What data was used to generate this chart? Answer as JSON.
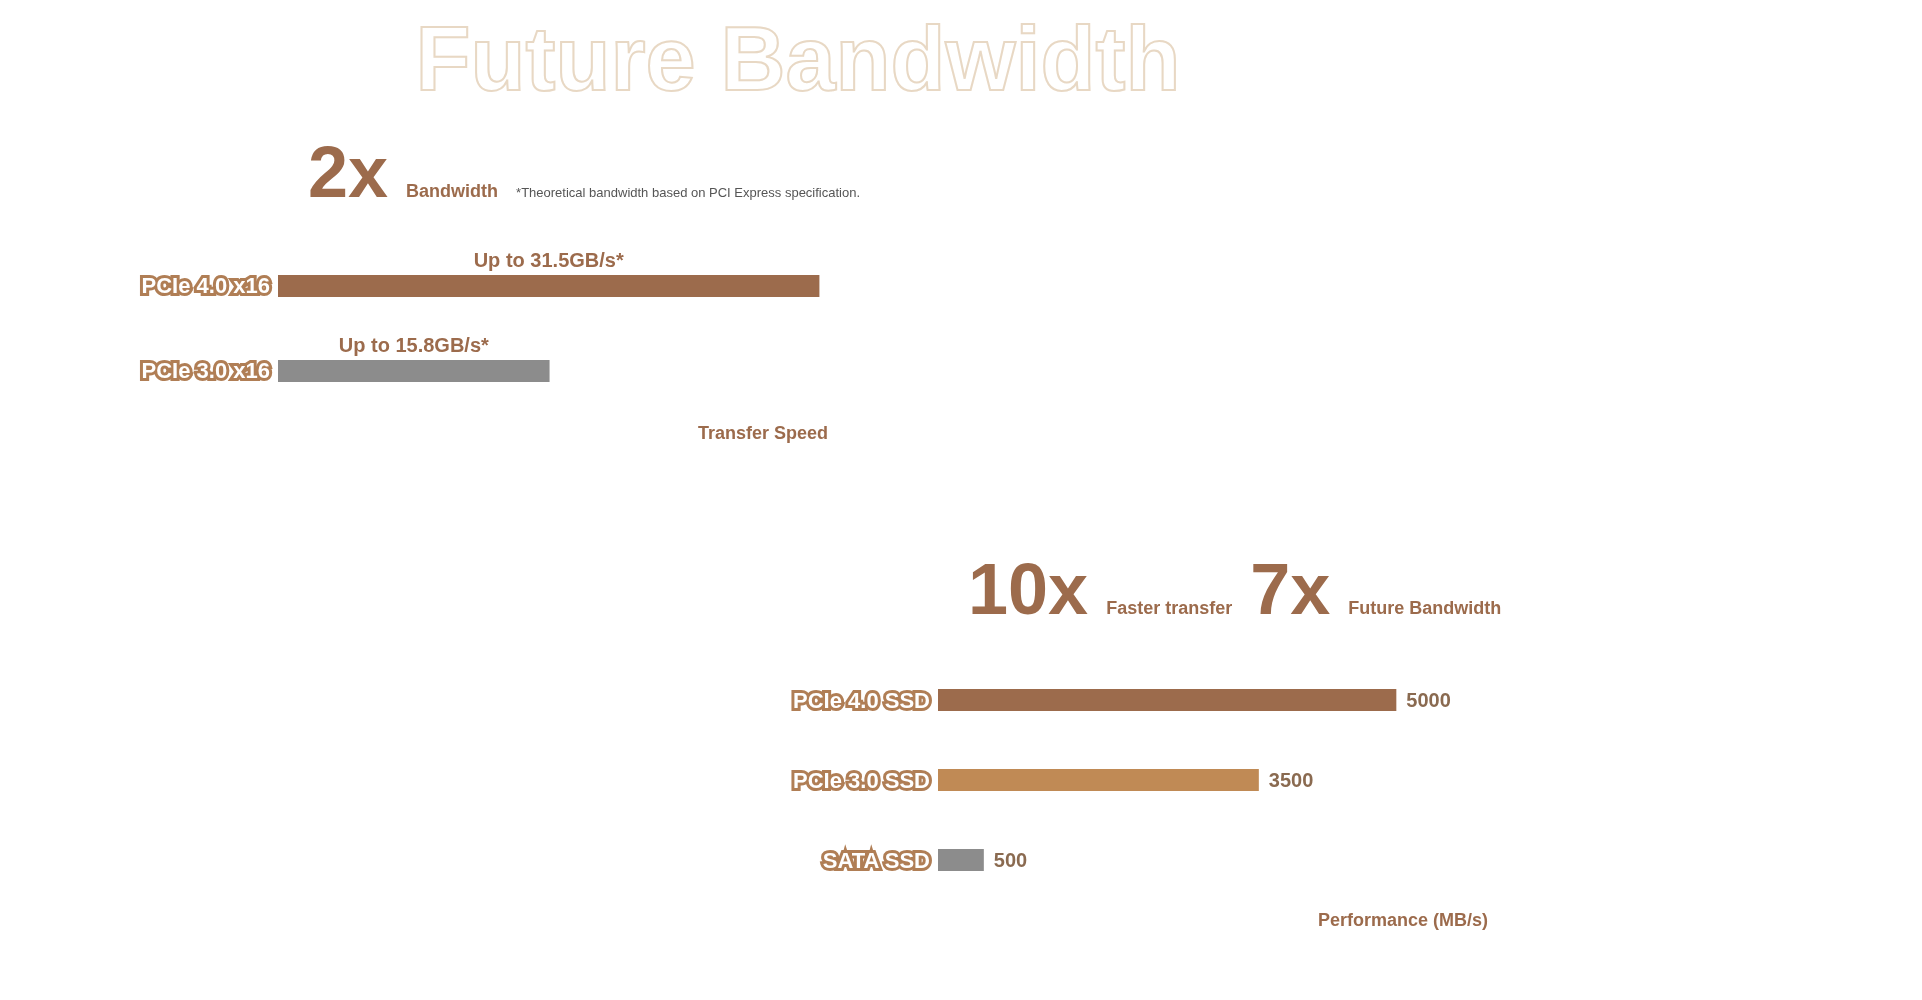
{
  "chart_data": [
    {
      "type": "bar",
      "orientation": "horizontal",
      "title": "Future Bandwidth",
      "categories": [
        "PCIe 4.0 x16",
        "PCIe 3.0 x16"
      ],
      "values": [
        31.5,
        15.8
      ],
      "colors": [
        "#9c6b4c",
        "#8c8c8c"
      ],
      "value_labels": [
        "Up to 31.5GB/s*",
        "Up to 15.8GB/s*"
      ],
      "xlabel": "Transfer Speed",
      "annotations": [
        "2x",
        "Bandwidth",
        "*Theoretical bandwidth based on PCI Express specification."
      ],
      "tick_labels": "y",
      "grid": false,
      "legend": false
    },
    {
      "type": "bar",
      "orientation": "horizontal",
      "categories": [
        "PCIe 4.0 SSD",
        "PCIe 3.0 SSD",
        "SATA SSD"
      ],
      "values": [
        5000,
        3500,
        500
      ],
      "colors": [
        "#9c6b4c",
        "#c08a55",
        "#8c8c8c"
      ],
      "data_labels": true,
      "xlabel": "Performance (MB/s)",
      "annotations": [
        "10x",
        "Faster transfer",
        "7x",
        "Future Bandwidth"
      ],
      "tick_labels": "y",
      "grid": false,
      "legend": false
    }
  ]
}
